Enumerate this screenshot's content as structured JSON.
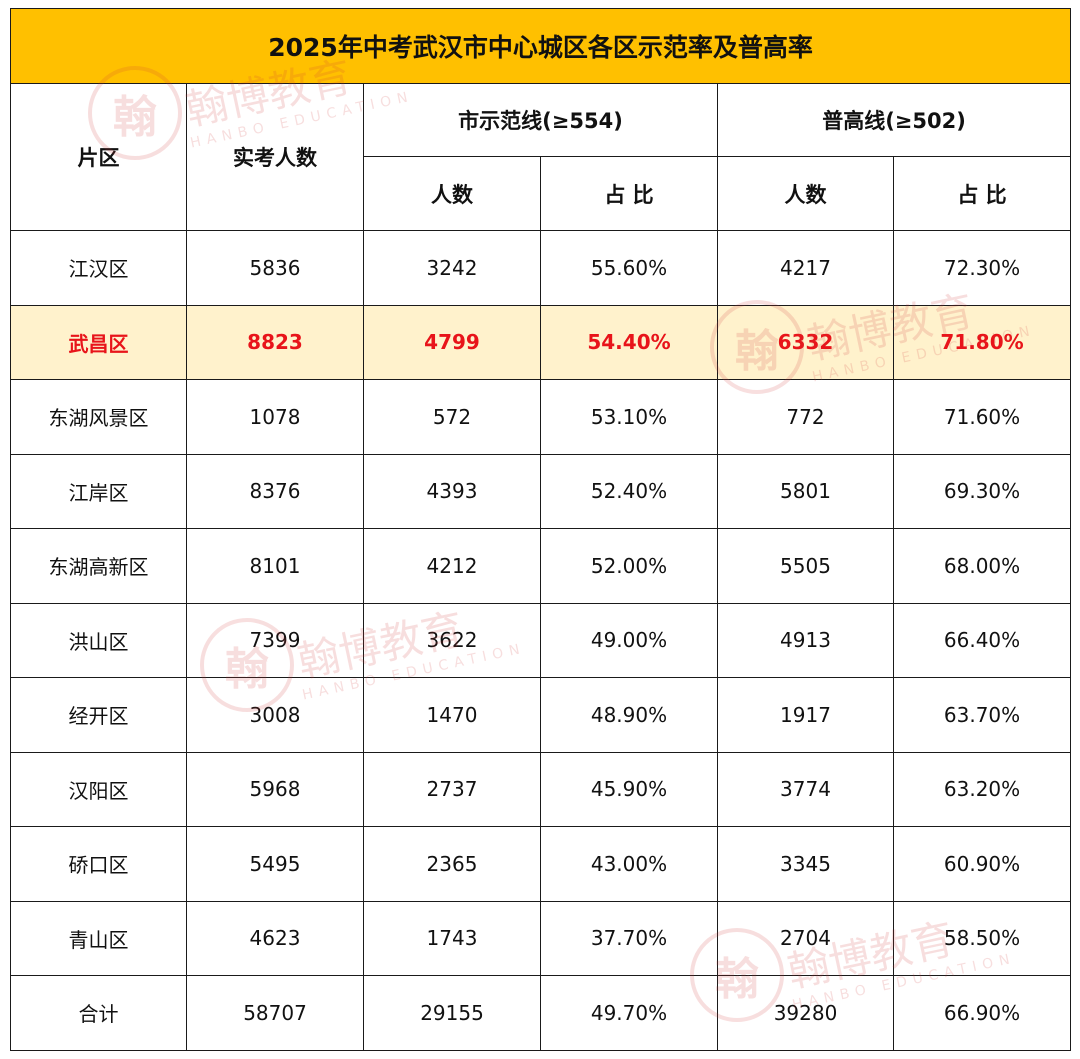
{
  "title": "2025年中考武汉市中心城区各区示范率及普高率",
  "headers": {
    "district": "片区",
    "examinees": "实考人数",
    "model_line": "市示范线(≥554)",
    "general_line": "普高线(≥502)",
    "count": "人数",
    "ratio": "占 比"
  },
  "rows": [
    {
      "district": "江汉区",
      "examinees": "5836",
      "model_count": "3242",
      "model_ratio": "55.60%",
      "general_count": "4217",
      "general_ratio": "72.30%"
    },
    {
      "district": "武昌区",
      "examinees": "8823",
      "model_count": "4799",
      "model_ratio": "54.40%",
      "general_count": "6332",
      "general_ratio": "71.80%"
    },
    {
      "district": "东湖风景区",
      "examinees": "1078",
      "model_count": "572",
      "model_ratio": "53.10%",
      "general_count": "772",
      "general_ratio": "71.60%"
    },
    {
      "district": "江岸区",
      "examinees": "8376",
      "model_count": "4393",
      "model_ratio": "52.40%",
      "general_count": "5801",
      "general_ratio": "69.30%"
    },
    {
      "district": "东湖高新区",
      "examinees": "8101",
      "model_count": "4212",
      "model_ratio": "52.00%",
      "general_count": "5505",
      "general_ratio": "68.00%"
    },
    {
      "district": "洪山区",
      "examinees": "7399",
      "model_count": "3622",
      "model_ratio": "49.00%",
      "general_count": "4913",
      "general_ratio": "66.40%"
    },
    {
      "district": "经开区",
      "examinees": "3008",
      "model_count": "1470",
      "model_ratio": "48.90%",
      "general_count": "1917",
      "general_ratio": "63.70%"
    },
    {
      "district": "汉阳区",
      "examinees": "5968",
      "model_count": "2737",
      "model_ratio": "45.90%",
      "general_count": "3774",
      "general_ratio": "63.20%"
    },
    {
      "district": "硚口区",
      "examinees": "5495",
      "model_count": "2365",
      "model_ratio": "43.00%",
      "general_count": "3345",
      "general_ratio": "60.90%"
    },
    {
      "district": "青山区",
      "examinees": "4623",
      "model_count": "1743",
      "model_ratio": "37.70%",
      "general_count": "2704",
      "general_ratio": "58.50%"
    },
    {
      "district": "合计",
      "examinees": "58707",
      "model_count": "29155",
      "model_ratio": "49.70%",
      "general_count": "39280",
      "general_ratio": "66.90%"
    }
  ],
  "highlight_row_index": 1,
  "colors": {
    "title_bg": "#ffc000",
    "highlight_bg": "#fff2cc",
    "highlight_text": "#e8141a",
    "border": "#1a1a1a"
  },
  "watermark": {
    "seal_char": "翰",
    "brand": "翰博教育",
    "sub": "HANBO EDUCATION"
  }
}
